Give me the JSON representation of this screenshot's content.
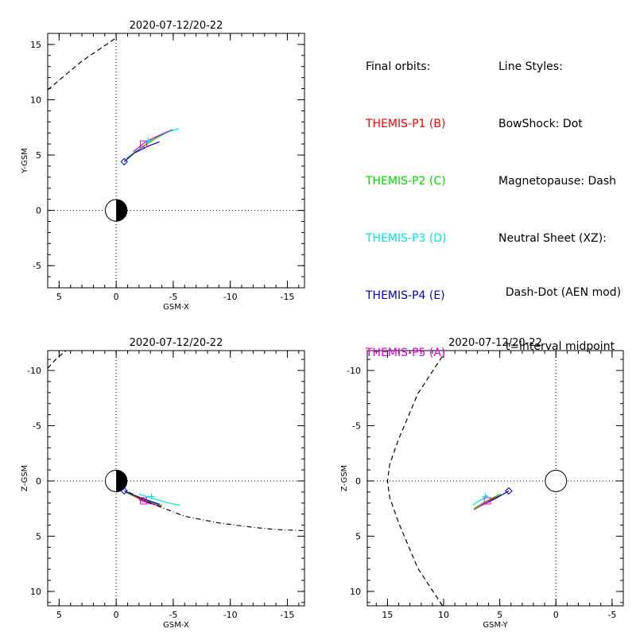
{
  "legend": {
    "orbits_title": "Final orbits:",
    "orbits": [
      {
        "label": "THEMIS-P1 (B)",
        "color": "#ff0000"
      },
      {
        "label": "THEMIS-P2 (C)",
        "color": "#00dd00"
      },
      {
        "label": "THEMIS-P3 (D)",
        "color": "#00e5e5"
      },
      {
        "label": "THEMIS-P4 (E)",
        "color": "#0000cc"
      },
      {
        "label": "THEMIS-P5 (A)",
        "color": "#dd00dd"
      }
    ],
    "styles_title": "Line Styles:",
    "styles": [
      "BowShock: Dot",
      "Magnetopause: Dash",
      "Neutral Sheet (XZ):",
      "  Dash-Dot (AEN mod)",
      "  t=interval midpoint"
    ]
  },
  "chart_data": [
    {
      "type": "line",
      "title": "2020-07-12/20-22",
      "xlabel": "GSM-X",
      "ylabel": "Y-GSM",
      "xlim": [
        6,
        -16.5
      ],
      "ylim": [
        16,
        -7
      ],
      "xticks": [
        5,
        0,
        -5,
        -10,
        -15
      ],
      "yticks": [
        -5,
        0,
        5,
        10,
        15
      ],
      "earth": {
        "x": 0,
        "y": 0,
        "r": 0.95,
        "shaded": true
      },
      "series": [
        {
          "color": "#ff0000",
          "style": "solid",
          "x": [
            -0.9,
            -2.4,
            -3.6,
            -4.9
          ],
          "y": [
            4.7,
            5.8,
            6.6,
            7.3
          ]
        },
        {
          "color": "#00dd00",
          "style": "solid",
          "x": [
            -0.9,
            -2.5,
            -3.8,
            -5.0
          ],
          "y": [
            4.7,
            5.9,
            6.7,
            7.3
          ]
        },
        {
          "color": "#00e5e5",
          "style": "solid",
          "x": [
            -2.7,
            -3.6,
            -4.6,
            -5.5
          ],
          "y": [
            6.2,
            6.7,
            7.1,
            7.4
          ]
        },
        {
          "color": "#0000cc",
          "style": "solid",
          "x": [
            -0.7,
            -1.6,
            -2.8,
            -3.8
          ],
          "y": [
            4.4,
            5.2,
            5.8,
            6.2
          ]
        },
        {
          "color": "#dd00dd",
          "style": "solid",
          "x": [
            -1.5,
            -2.6,
            -3.8,
            -4.7
          ],
          "y": [
            5.3,
            6.2,
            6.8,
            7.2
          ]
        },
        {
          "color": "#000000",
          "style": "dash",
          "x": [
            6,
            3,
            0
          ],
          "y": [
            10.9,
            13.5,
            15.6
          ]
        }
      ],
      "markers": [
        {
          "shape": "diamond",
          "color": "#0000cc",
          "x": -0.7,
          "y": 4.4
        },
        {
          "shape": "square",
          "color": "#dd00dd",
          "x": -2.4,
          "y": 6.0
        },
        {
          "shape": "plus",
          "color": "#00e5e5",
          "x": -2.8,
          "y": 6.3
        }
      ]
    },
    {
      "type": "line",
      "title": "2020-07-12/20-22",
      "xlabel": "GSM-X",
      "ylabel": "Z-GSM",
      "xlim": [
        6,
        -16.5
      ],
      "ylim": [
        -11.8,
        11.3
      ],
      "xticks": [
        5,
        0,
        -5,
        -10,
        -15
      ],
      "yticks": [
        10,
        5,
        0,
        -5,
        -10
      ],
      "earth": {
        "x": 0,
        "y": 0,
        "r": 0.95,
        "shaded": true
      },
      "series": [
        {
          "color": "#ff0000",
          "style": "solid",
          "x": [
            -0.8,
            -2.0,
            -3.3,
            -4.0
          ],
          "y": [
            1.0,
            1.6,
            2.1,
            2.3
          ]
        },
        {
          "color": "#00dd00",
          "style": "solid",
          "x": [
            -0.8,
            -2.0,
            -3.3,
            -4.0
          ],
          "y": [
            1.0,
            1.5,
            2.0,
            2.2
          ]
        },
        {
          "color": "#00e5e5",
          "style": "solid",
          "x": [
            -2.0,
            -3.3,
            -4.6,
            -5.6
          ],
          "y": [
            1.2,
            1.6,
            2.0,
            2.2
          ]
        },
        {
          "color": "#0000cc",
          "style": "solid",
          "x": [
            -0.7,
            -1.6,
            -2.6,
            -3.8
          ],
          "y": [
            0.9,
            1.3,
            1.7,
            2.1
          ]
        },
        {
          "color": "#dd00dd",
          "style": "solid",
          "x": [
            -2.0,
            -2.8,
            -3.6,
            -3.9
          ],
          "y": [
            1.7,
            2.0,
            2.2,
            2.3
          ]
        },
        {
          "color": "#000000",
          "style": "dashdot",
          "x": [
            -0.3,
            -3.0,
            -6.0,
            -9.0,
            -12.0,
            -14.0,
            -16.5
          ],
          "y": [
            0.6,
            2.0,
            3.2,
            3.8,
            4.2,
            4.4,
            4.5
          ]
        },
        {
          "color": "#000000",
          "style": "dash",
          "x": [
            6,
            5.2,
            4.4
          ],
          "y": [
            -10.2,
            -11.1,
            -11.8
          ]
        }
      ],
      "markers": [
        {
          "shape": "diamond",
          "color": "#0000cc",
          "x": -0.7,
          "y": 0.9
        },
        {
          "shape": "square",
          "color": "#dd00dd",
          "x": -2.4,
          "y": 1.8
        },
        {
          "shape": "plus",
          "color": "#00e5e5",
          "x": -3.1,
          "y": 1.4
        }
      ]
    },
    {
      "type": "line",
      "title": "2020-07-12/20-22",
      "xlabel": "GSM-Y",
      "ylabel": "Z-GSM",
      "xlim": [
        16.8,
        -6
      ],
      "ylim": [
        -11.8,
        11.3
      ],
      "xticks": [
        15,
        10,
        5,
        0,
        -5
      ],
      "yticks": [
        10,
        5,
        0,
        -5,
        -10
      ],
      "earth": {
        "x": 0,
        "y": 0,
        "r": 0.95,
        "shaded": false
      },
      "series": [
        {
          "color": "#ff0000",
          "style": "solid",
          "x": [
            7.3,
            6.5,
            5.6,
            4.9
          ],
          "y": [
            2.6,
            2.1,
            1.6,
            1.3
          ]
        },
        {
          "color": "#00dd00",
          "style": "solid",
          "x": [
            7.3,
            6.5,
            5.6,
            4.9
          ],
          "y": [
            2.5,
            2.0,
            1.5,
            1.2
          ]
        },
        {
          "color": "#00e5e5",
          "style": "solid",
          "x": [
            7.4,
            7.0,
            6.5,
            6.1
          ],
          "y": [
            2.2,
            1.9,
            1.6,
            1.3
          ]
        },
        {
          "color": "#0000cc",
          "style": "solid",
          "x": [
            6.2,
            5.4,
            4.7,
            4.2
          ],
          "y": [
            2.0,
            1.6,
            1.2,
            0.9
          ]
        },
        {
          "color": "#dd00dd",
          "style": "solid",
          "x": [
            7.0,
            6.4,
            5.9
          ],
          "y": [
            2.4,
            2.1,
            1.8
          ]
        },
        {
          "color": "#000000",
          "style": "dash",
          "x": [
            10.1,
            12.3,
            14.0,
            14.8,
            15.0,
            14.8,
            14.0,
            12.3,
            10.1
          ],
          "y": [
            11.3,
            7.9,
            3.8,
            1.5,
            0.0,
            -1.5,
            -3.8,
            -7.9,
            -11.3
          ]
        }
      ],
      "markers": [
        {
          "shape": "diamond",
          "color": "#0000cc",
          "x": 4.2,
          "y": 0.9
        },
        {
          "shape": "square",
          "color": "#dd00dd",
          "x": 6.1,
          "y": 1.8
        },
        {
          "shape": "plus",
          "color": "#00e5e5",
          "x": 6.3,
          "y": 1.4
        }
      ]
    }
  ]
}
